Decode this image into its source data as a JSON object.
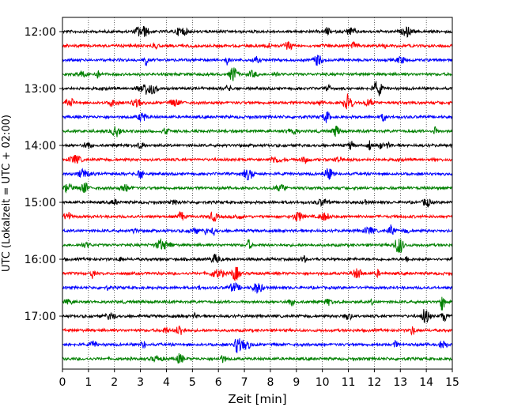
{
  "chart_data": {
    "type": "line",
    "title": "",
    "xlabel": "Zeit  [min]",
    "ylabel": "UTC (Lokalzeit = UTC + 02:00)",
    "xlim": [
      0,
      15
    ],
    "x_ticks": [
      "0",
      "1",
      "2",
      "3",
      "4",
      "5",
      "6",
      "7",
      "8",
      "9",
      "10",
      "11",
      "12",
      "13",
      "14",
      "15"
    ],
    "y_ticks": [
      {
        "label": "12:00",
        "minutes_utc": 720
      },
      {
        "label": "13:00",
        "minutes_utc": 780
      },
      {
        "label": "14:00",
        "minutes_utc": 840
      },
      {
        "label": "15:00",
        "minutes_utc": 900
      },
      {
        "label": "16:00",
        "minutes_utc": 960
      },
      {
        "label": "17:00",
        "minutes_utc": 1020
      }
    ],
    "trace_interval_min": 15,
    "trace_count": 24,
    "first_trace_utc_min": 720,
    "colors": [
      "#000000",
      "#ff0000",
      "#0000ff",
      "#008000"
    ],
    "grid": "vertical-dotted",
    "legend": "none"
  }
}
